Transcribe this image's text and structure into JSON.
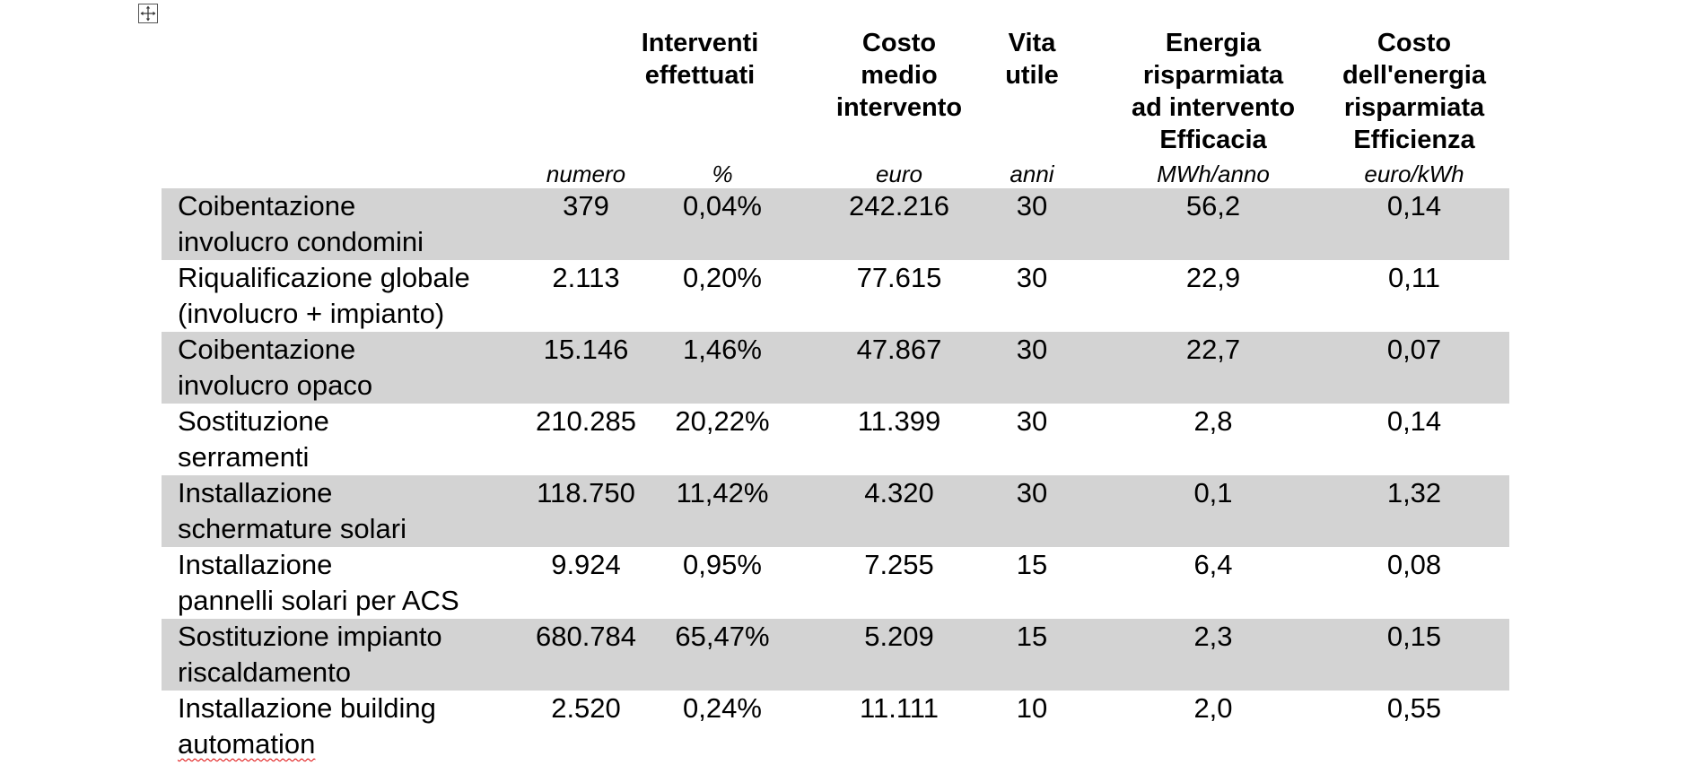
{
  "table": {
    "headers": {
      "interventi": "Interventi\neffettuati",
      "costo_medio": "Costo\nmedio\nintervento",
      "vita_utile": "Vita\nutile",
      "energia": "Energia\nrisparmiata\nad intervento\nEfficacia",
      "costo_energia": "Costo\ndell'energia\nrisparmiata\nEfficienza"
    },
    "units": {
      "numero": "numero",
      "percent": "%",
      "euro": "euro",
      "anni": "anni",
      "mwh": "MWh/anno",
      "euro_kwh": "euro/kWh"
    },
    "rows": [
      {
        "label_1": "Coibentazione",
        "label_2": "involucro condomini",
        "numero": "379",
        "percent": "0,04%",
        "costo": "242.216",
        "vita": "30",
        "energia": "56,2",
        "costo_energia": "0,14"
      },
      {
        "label_1": "Riqualificazione globale",
        "label_2": "(involucro + impianto)",
        "numero": "2.113",
        "percent": "0,20%",
        "costo": "77.615",
        "vita": "30",
        "energia": "22,9",
        "costo_energia": "0,11"
      },
      {
        "label_1": "Coibentazione",
        "label_2": "involucro opaco",
        "numero": "15.146",
        "percent": "1,46%",
        "costo": "47.867",
        "vita": "30",
        "energia": "22,7",
        "costo_energia": "0,07"
      },
      {
        "label_1": "Sostituzione",
        "label_2": "serramenti",
        "numero": "210.285",
        "percent": "20,22%",
        "costo": "11.399",
        "vita": "30",
        "energia": "2,8",
        "costo_energia": "0,14"
      },
      {
        "label_1": "Installazione",
        "label_2": "schermature solari",
        "numero": "118.750",
        "percent": "11,42%",
        "costo": "4.320",
        "vita": "30",
        "energia": "0,1",
        "costo_energia": "1,32"
      },
      {
        "label_1": "Installazione",
        "label_2": "pannelli solari per ACS",
        "numero": "9.924",
        "percent": "0,95%",
        "costo": "7.255",
        "vita": "15",
        "energia": "6,4",
        "costo_energia": "0,08"
      },
      {
        "label_1": "Sostituzione impianto",
        "label_2": "riscaldamento",
        "numero": "680.784",
        "percent": "65,47%",
        "costo": "5.209",
        "vita": "15",
        "energia": "2,3",
        "costo_energia": "0,15"
      },
      {
        "label_1": "Installazione building",
        "label_2": "automation",
        "numero": "2.520",
        "percent": "0,24%",
        "costo": "11.111",
        "vita": "10",
        "energia": "2,0",
        "costo_energia": "0,55"
      }
    ]
  }
}
